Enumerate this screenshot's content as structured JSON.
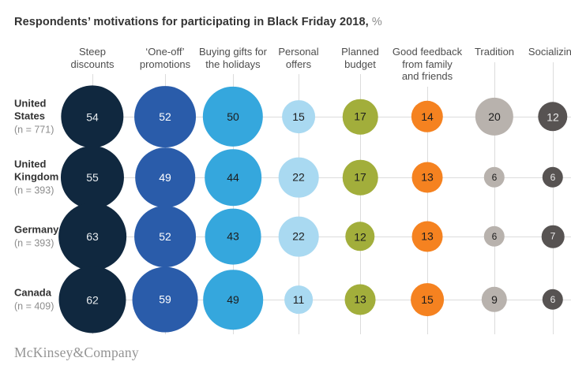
{
  "title": {
    "text": "Respondents’ motivations for participating in Black Friday 2018,",
    "unit": "%"
  },
  "footer": {
    "logo": "McKinsey&Company"
  },
  "chart_data": {
    "type": "bubble",
    "title": "Respondents’ motivations for participating in Black Friday 2018, %",
    "unit": "%",
    "size_encoding": "circle area proportional to value",
    "grid": "on",
    "columns": [
      {
        "label": "Steep discounts",
        "lines": "Steep\ndiscounts",
        "color": "#10283f",
        "text_color": "#e8ecef"
      },
      {
        "label": "‘One-off’ promotions",
        "lines": "‘One-off’\npromotions",
        "color": "#2a5caa",
        "text_color": "#ffffff"
      },
      {
        "label": "Buying gifts for the holidays",
        "lines": "Buying gifts for\nthe holidays",
        "color": "#35a7dd",
        "text_color": "#1d1d1d"
      },
      {
        "label": "Personal offers",
        "lines": "Personal\noffers",
        "color": "#a9d9f1",
        "text_color": "#1d1d1d"
      },
      {
        "label": "Planned budget",
        "lines": "Planned\nbudget",
        "color": "#a2ae3b",
        "text_color": "#1d1d1d"
      },
      {
        "label": "Good feedback from family and friends",
        "lines": "Good feedback\nfrom family\nand friends",
        "color": "#f58220",
        "text_color": "#1d1d1d"
      },
      {
        "label": "Tradition",
        "lines": "Tradition",
        "color": "#b8b2ad",
        "text_color": "#1d1d1d"
      },
      {
        "label": "Socializing",
        "lines": "Socializing",
        "color": "#575352",
        "text_color": "#ebebeb"
      }
    ],
    "series": [
      {
        "name": "United States",
        "n_label": "(n = 771)",
        "values": [
          54,
          52,
          50,
          15,
          17,
          14,
          20,
          12
        ]
      },
      {
        "name": "United Kingdom",
        "n_label": "(n = 393)",
        "values": [
          55,
          49,
          44,
          22,
          17,
          13,
          6,
          6
        ]
      },
      {
        "name": "Germany",
        "n_label": "(n = 393)",
        "values": [
          63,
          52,
          43,
          22,
          12,
          13,
          6,
          7
        ]
      },
      {
        "name": "Canada",
        "n_label": "(n = 409)",
        "values": [
          62,
          59,
          49,
          11,
          13,
          15,
          9,
          6
        ]
      }
    ]
  }
}
